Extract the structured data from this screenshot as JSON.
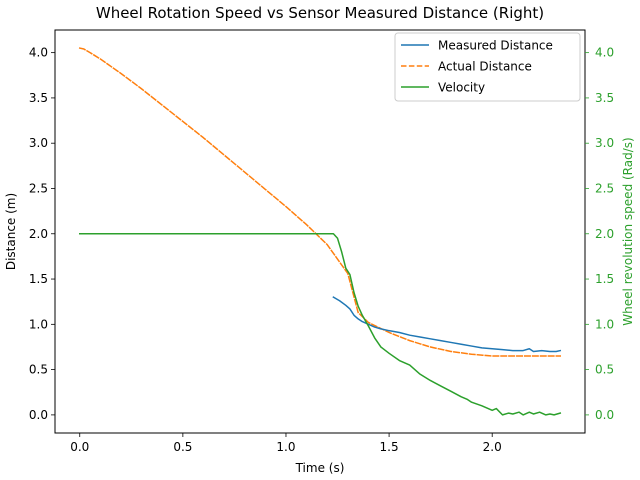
{
  "chart_data": {
    "type": "line",
    "title": "Wheel Rotation Speed vs Sensor Measured Distance (Right)",
    "xlabel": "Time (s)",
    "ylabel": "Distance (m)",
    "y2label": "Wheel revolution speed (Rad/s)",
    "xlim": [
      -0.12,
      2.45
    ],
    "ylim": [
      -0.2,
      4.25
    ],
    "y2lim": [
      -0.2,
      4.25
    ],
    "xticks": [
      0.0,
      0.5,
      1.0,
      1.5,
      2.0
    ],
    "xtick_labels": [
      "0.0",
      "0.5",
      "1.0",
      "1.5",
      "2.0"
    ],
    "yticks": [
      0.0,
      0.5,
      1.0,
      1.5,
      2.0,
      2.5,
      3.0,
      3.5,
      4.0
    ],
    "ytick_labels": [
      "0.0",
      "0.5",
      "1.0",
      "1.5",
      "2.0",
      "2.5",
      "3.0",
      "3.5",
      "4.0"
    ],
    "y2ticks": [
      0.0,
      0.5,
      1.0,
      1.5,
      2.0,
      2.5,
      3.0,
      3.5,
      4.0
    ],
    "y2tick_labels": [
      "0.0",
      "0.5",
      "1.0",
      "1.5",
      "2.0",
      "2.5",
      "3.0",
      "3.5",
      "4.0"
    ],
    "grid": false,
    "legend_position": "upper-right",
    "series": [
      {
        "name": "Measured Distance",
        "color": "#1f77b4",
        "style": "solid",
        "axis": "left",
        "x": [
          1.23,
          1.26,
          1.29,
          1.31,
          1.33,
          1.35,
          1.37,
          1.4,
          1.43,
          1.46,
          1.5,
          1.55,
          1.6,
          1.65,
          1.7,
          1.75,
          1.8,
          1.85,
          1.9,
          1.95,
          2.0,
          2.05,
          2.1,
          2.15,
          2.18,
          2.2,
          2.24,
          2.28,
          2.31,
          2.33
        ],
        "y": [
          1.3,
          1.26,
          1.21,
          1.17,
          1.1,
          1.06,
          1.03,
          1.0,
          0.97,
          0.95,
          0.93,
          0.91,
          0.88,
          0.86,
          0.84,
          0.82,
          0.8,
          0.78,
          0.76,
          0.74,
          0.73,
          0.72,
          0.71,
          0.71,
          0.73,
          0.7,
          0.71,
          0.7,
          0.7,
          0.71
        ]
      },
      {
        "name": "Actual Distance",
        "color": "#ff7f0e",
        "style": "dashed",
        "axis": "left",
        "x": [
          0.0,
          0.02,
          0.05,
          0.1,
          0.2,
          0.3,
          0.4,
          0.5,
          0.6,
          0.7,
          0.8,
          0.9,
          1.0,
          1.1,
          1.2,
          1.3,
          1.35,
          1.4,
          1.5,
          1.6,
          1.7,
          1.8,
          1.9,
          2.0,
          2.1,
          2.2,
          2.33
        ],
        "y": [
          4.05,
          4.04,
          4.0,
          3.93,
          3.77,
          3.6,
          3.42,
          3.24,
          3.06,
          2.87,
          2.68,
          2.49,
          2.3,
          2.1,
          1.88,
          1.56,
          1.13,
          1.02,
          0.91,
          0.82,
          0.75,
          0.7,
          0.67,
          0.65,
          0.65,
          0.65,
          0.65
        ]
      },
      {
        "name": "Velocity",
        "color": "#2ca02c",
        "style": "solid",
        "axis": "right",
        "x": [
          0.0,
          1.2,
          1.23,
          1.25,
          1.27,
          1.29,
          1.31,
          1.33,
          1.35,
          1.37,
          1.4,
          1.43,
          1.46,
          1.5,
          1.55,
          1.6,
          1.65,
          1.7,
          1.75,
          1.8,
          1.85,
          1.88,
          1.9,
          1.95,
          2.0,
          2.02,
          2.05,
          2.08,
          2.1,
          2.13,
          2.15,
          2.18,
          2.2,
          2.23,
          2.26,
          2.28,
          2.3,
          2.33
        ],
        "y": [
          2.0,
          2.0,
          2.0,
          1.95,
          1.8,
          1.62,
          1.55,
          1.35,
          1.2,
          1.1,
          0.98,
          0.85,
          0.75,
          0.68,
          0.6,
          0.55,
          0.45,
          0.38,
          0.32,
          0.26,
          0.2,
          0.17,
          0.14,
          0.1,
          0.05,
          0.07,
          0.0,
          0.02,
          0.01,
          0.03,
          0.0,
          0.03,
          0.01,
          0.03,
          0.0,
          0.01,
          0.0,
          0.02
        ]
      }
    ]
  }
}
